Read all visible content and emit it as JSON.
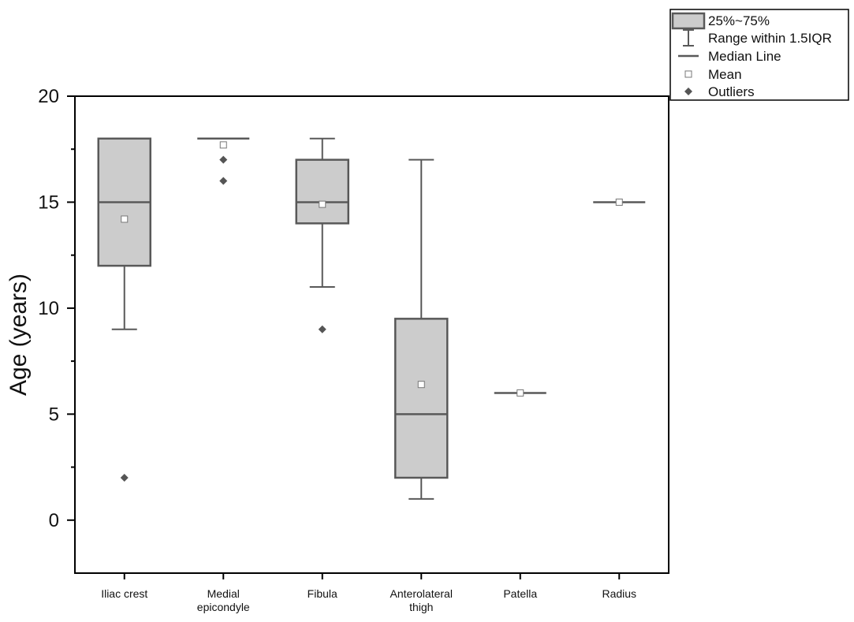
{
  "chart_data": {
    "type": "box",
    "ylabel": "Age (years)",
    "xlabel": "",
    "ylim": [
      -2.5,
      20
    ],
    "yticks": [
      0,
      5,
      10,
      15,
      20
    ],
    "grid": false,
    "legend_position": "top-right",
    "colors": {
      "box_fill": "#cccccc",
      "stroke": "#595959",
      "outlier": "#555555"
    },
    "legend": [
      {
        "key": "box",
        "label": "25%~75%"
      },
      {
        "key": "range",
        "label": "Range within 1.5IQR"
      },
      {
        "key": "median",
        "label": "Median Line"
      },
      {
        "key": "mean",
        "label": "Mean"
      },
      {
        "key": "outliers",
        "label": "Outliers"
      }
    ],
    "categories": [
      {
        "label": [
          "Iliac crest"
        ],
        "q1": 12,
        "median": 15,
        "q3": 18,
        "whisker_low": 9,
        "whisker_high": 18,
        "mean": 14.2,
        "outliers": [
          2
        ]
      },
      {
        "label": [
          "Medial",
          "epicondyle"
        ],
        "q1": 18,
        "median": 18,
        "q3": 18,
        "whisker_low": 18,
        "whisker_high": 18,
        "mean": 17.7,
        "outliers": [
          16,
          17
        ]
      },
      {
        "label": [
          "Fibula"
        ],
        "q1": 14,
        "median": 15,
        "q3": 17,
        "whisker_low": 11,
        "whisker_high": 18,
        "mean": 14.9,
        "outliers": [
          9
        ]
      },
      {
        "label": [
          "Anterolateral",
          "thigh"
        ],
        "q1": 2,
        "median": 5,
        "q3": 9.5,
        "whisker_low": 1,
        "whisker_high": 17,
        "mean": 6.4,
        "outliers": []
      },
      {
        "label": [
          "Patella"
        ],
        "q1": 6,
        "median": 6,
        "q3": 6,
        "whisker_low": 6,
        "whisker_high": 6,
        "mean": 6,
        "outliers": []
      },
      {
        "label": [
          "Radius"
        ],
        "q1": 15,
        "median": 15,
        "q3": 15,
        "whisker_low": 15,
        "whisker_high": 15,
        "mean": 15,
        "outliers": []
      }
    ]
  }
}
